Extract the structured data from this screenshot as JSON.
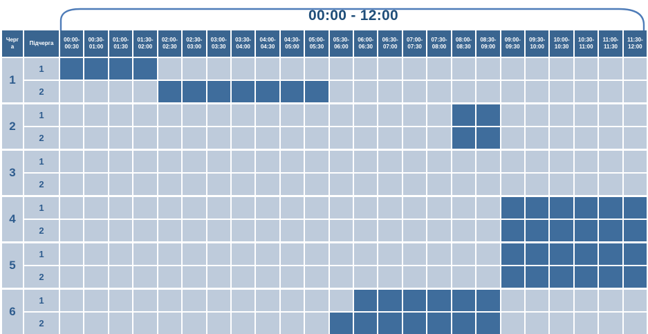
{
  "chart_data": {
    "type": "heatmap",
    "title": "00:00 - 12:00",
    "column_headers": {
      "queue": "Черга",
      "subqueue": "Підчерга"
    },
    "time_slots": [
      "00:00-00:30",
      "00:30-01:00",
      "01:00-01:30",
      "01:30-02:00",
      "02:00-02:30",
      "02:30-03:00",
      "03:00-03:30",
      "03:30-04:00",
      "04:00-04:30",
      "04:30-05:00",
      "05:00-05:30",
      "05:30-06:00",
      "06:00-06:30",
      "06:30-07:00",
      "07:00-07:30",
      "07:30-08:00",
      "08:00-08:30",
      "08:30-09:00",
      "09:00-09:30",
      "09:30-10:00",
      "10:00-10:30",
      "10:30-11:00",
      "11:00-11:30",
      "11:30-12:00"
    ],
    "rows": [
      {
        "queue": "1",
        "subqueue": "1",
        "outage_intervals": [
          "00:00-02:00"
        ],
        "filled_slots": [
          0,
          1,
          2,
          3
        ]
      },
      {
        "queue": "1",
        "subqueue": "2",
        "outage_intervals": [
          "02:00-05:30"
        ],
        "filled_slots": [
          4,
          5,
          6,
          7,
          8,
          9,
          10
        ]
      },
      {
        "queue": "2",
        "subqueue": "1",
        "outage_intervals": [
          "08:00-09:00"
        ],
        "filled_slots": [
          16,
          17
        ]
      },
      {
        "queue": "2",
        "subqueue": "2",
        "outage_intervals": [
          "08:00-09:00"
        ],
        "filled_slots": [
          16,
          17
        ]
      },
      {
        "queue": "3",
        "subqueue": "1",
        "outage_intervals": [],
        "filled_slots": []
      },
      {
        "queue": "3",
        "subqueue": "2",
        "outage_intervals": [],
        "filled_slots": []
      },
      {
        "queue": "4",
        "subqueue": "1",
        "outage_intervals": [
          "09:00-12:00"
        ],
        "filled_slots": [
          18,
          19,
          20,
          21,
          22,
          23
        ]
      },
      {
        "queue": "4",
        "subqueue": "2",
        "outage_intervals": [
          "09:00-12:00"
        ],
        "filled_slots": [
          18,
          19,
          20,
          21,
          22,
          23
        ]
      },
      {
        "queue": "5",
        "subqueue": "1",
        "outage_intervals": [
          "09:00-12:00"
        ],
        "filled_slots": [
          18,
          19,
          20,
          21,
          22,
          23
        ]
      },
      {
        "queue": "5",
        "subqueue": "2",
        "outage_intervals": [
          "09:00-12:00"
        ],
        "filled_slots": [
          18,
          19,
          20,
          21,
          22,
          23
        ]
      },
      {
        "queue": "6",
        "subqueue": "1",
        "outage_intervals": [
          "06:00-09:00"
        ],
        "filled_slots": [
          12,
          13,
          14,
          15,
          16,
          17
        ]
      },
      {
        "queue": "6",
        "subqueue": "2",
        "outage_intervals": [
          "05:30-09:00"
        ],
        "filled_slots": [
          11,
          12,
          13,
          14,
          15,
          16,
          17
        ]
      }
    ],
    "layout": {
      "grid": "on",
      "legend": "none",
      "bracket_span": "time columns"
    },
    "colors": {
      "header_bg": "#3A6590",
      "cell_filled": "#3F6D9C",
      "cell_empty": "#BECBDB",
      "gridline": "#FFFFFF",
      "label_text": "#2E5C8E",
      "title_text": "#1F4E79",
      "bracket": "#4E7CB8",
      "header_text": "#FFFFFF"
    }
  }
}
